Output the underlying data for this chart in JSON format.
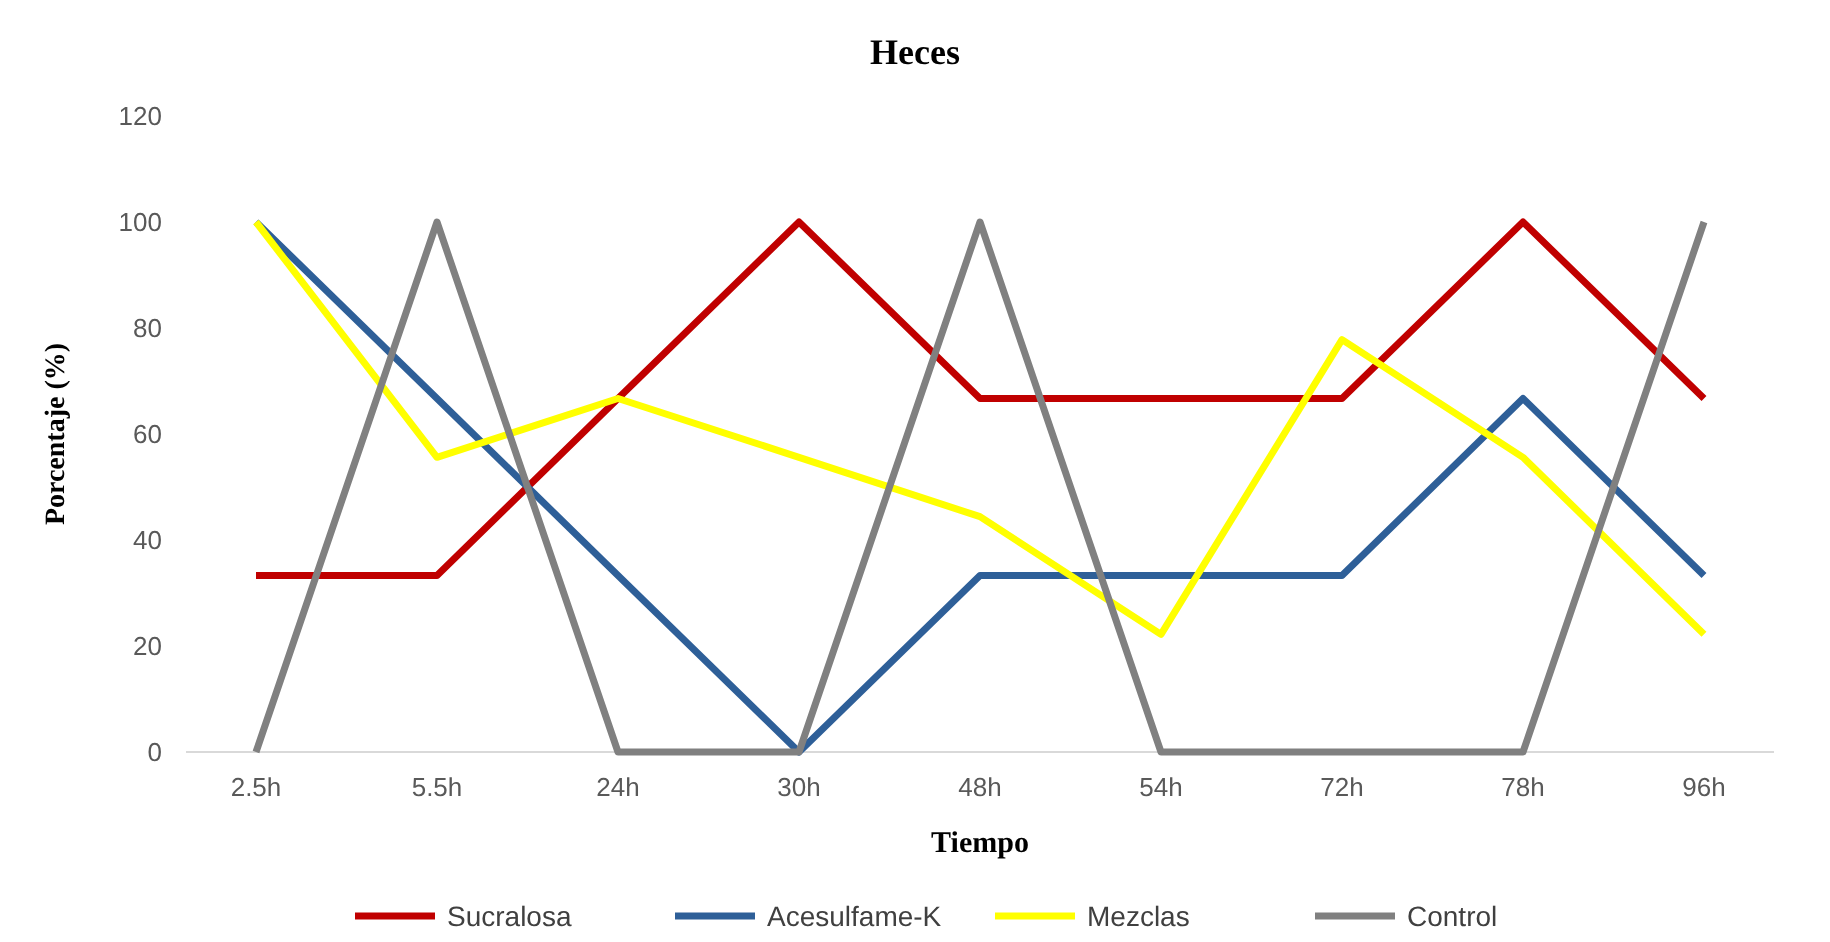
{
  "chart_data": {
    "type": "line",
    "title": "Heces",
    "xlabel": "Tiempo",
    "ylabel": "Porcentaje (%)",
    "categories": [
      "2.5h",
      "5.5h",
      "24h",
      "30h",
      "48h",
      "54h",
      "72h",
      "78h",
      "96h"
    ],
    "ylim": [
      0,
      120
    ],
    "yticks": [
      0,
      20,
      40,
      60,
      80,
      100,
      120
    ],
    "grid": false,
    "legend": "bottom",
    "marker": "none",
    "series": [
      {
        "name": "Sucralosa",
        "color": "#c00000",
        "values": [
          33.3,
          33.3,
          66.7,
          100,
          66.7,
          66.7,
          66.7,
          100,
          66.7
        ]
      },
      {
        "name": "Acesulfame-K",
        "color": "#2e5f98",
        "values": [
          100,
          66.7,
          33.3,
          0,
          33.3,
          33.3,
          33.3,
          66.7,
          33.3
        ]
      },
      {
        "name": "Mezclas",
        "color": "#ffff00",
        "values": [
          100,
          55.6,
          66.7,
          55.6,
          44.4,
          22.2,
          77.8,
          55.6,
          22.2
        ]
      },
      {
        "name": "Control",
        "color": "#808080",
        "values": [
          0,
          100,
          0,
          0,
          100,
          0,
          0,
          0,
          100
        ]
      }
    ]
  }
}
